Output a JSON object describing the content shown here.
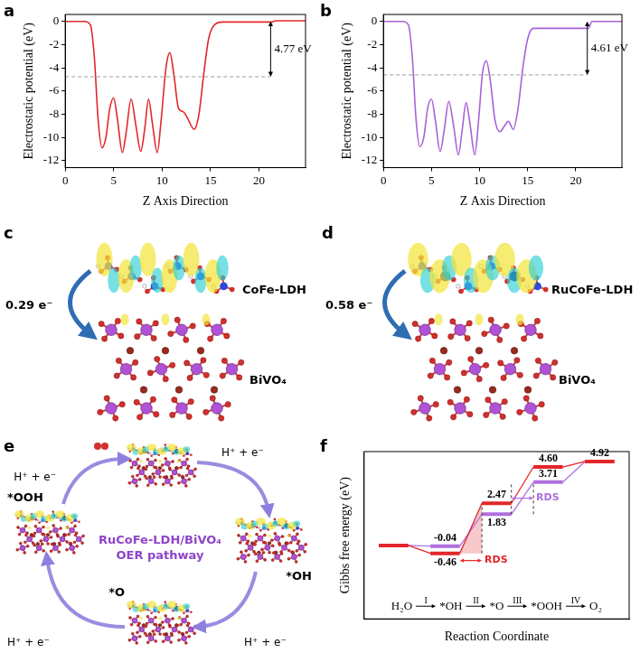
{
  "chart_data": [
    {
      "panel": "a",
      "type": "line",
      "x_label": "Z Axis Direction",
      "y_label": "Electrostatic potential (eV)",
      "xlim": [
        0,
        24.8
      ],
      "xticks": [
        0,
        5,
        10,
        15,
        20
      ],
      "ylim": [
        -12.6,
        0.6
      ],
      "yticks": [
        -12,
        -10,
        -8,
        -6,
        -4,
        -2,
        0
      ],
      "grid": false,
      "x": [
        0,
        2,
        2.6,
        3.0,
        3.4,
        3.8,
        4.2,
        4.6,
        5.0,
        5.4,
        5.9,
        6.3,
        6.8,
        7.3,
        7.8,
        8.2,
        8.6,
        9.0,
        9.5,
        9.9,
        10.4,
        10.8,
        11.2,
        11.7,
        12.2,
        12.6,
        13.3,
        13.8,
        14.3,
        14.8,
        15.4,
        16.2,
        21.3,
        21.7,
        24.8
      ],
      "series": [
        {
          "color": "#e3262a",
          "values": [
            0,
            0,
            -0.3,
            -3,
            -8.5,
            -10.9,
            -10,
            -7.5,
            -6.6,
            -8.5,
            -11.3,
            -9.5,
            -6.7,
            -9,
            -11.2,
            -9.3,
            -6.7,
            -8.8,
            -11.3,
            -8.5,
            -4,
            -2.7,
            -4.5,
            -7.5,
            -7.8,
            -8.3,
            -9.3,
            -8,
            -4.5,
            -1.5,
            -0.3,
            -0.05,
            -0.05,
            0.05,
            0.05
          ]
        }
      ],
      "annotation": {
        "text": "4.77 eV",
        "level": -4.77,
        "x": 21.2
      }
    },
    {
      "panel": "b",
      "type": "line",
      "x_label": "Z Axis Direction",
      "y_label": "Electrostatic potential (eV)",
      "xlim": [
        0,
        24.8
      ],
      "xticks": [
        0,
        5,
        10,
        15,
        20
      ],
      "ylim": [
        -12.6,
        0.6
      ],
      "yticks": [
        -12,
        -10,
        -8,
        -6,
        -4,
        -2,
        0
      ],
      "grid": false,
      "x": [
        0,
        2,
        2.6,
        3.0,
        3.4,
        3.8,
        4.2,
        4.6,
        5.0,
        5.4,
        5.9,
        6.3,
        6.8,
        7.3,
        7.8,
        8.2,
        8.6,
        9.0,
        9.5,
        9.9,
        10.3,
        10.7,
        11.1,
        11.6,
        12.1,
        12.6,
        13.0,
        13.5,
        14.0,
        14.5,
        15.0,
        15.6,
        16.2,
        21.3,
        21.7,
        24.8
      ],
      "series": [
        {
          "color": "#a862d8",
          "values": [
            0,
            0,
            -0.3,
            -3,
            -8.5,
            -10.8,
            -10,
            -7.5,
            -6.7,
            -8.5,
            -11.2,
            -9.5,
            -6.9,
            -9,
            -11.5,
            -9.3,
            -7.0,
            -8.8,
            -11.5,
            -8.5,
            -4.5,
            -3.4,
            -5,
            -8.5,
            -9.5,
            -9,
            -8.6,
            -9.3,
            -7.5,
            -4,
            -1.5,
            -0.6,
            -0.6,
            -0.6,
            0,
            0
          ]
        }
      ],
      "annotation": {
        "text": "4.61 eV",
        "level": -4.61,
        "x": 21.2
      }
    },
    {
      "panel": "f",
      "type": "step",
      "x_label": "Reaction Coordinate",
      "y_label": "Gibbs free energy (eV)",
      "ylim": [
        -4.3,
        5.5
      ],
      "tick_labels": false,
      "grid": false,
      "data_labels": true,
      "steps": [
        "H₂O",
        "*OH",
        "*O",
        "*OOH",
        "O₂"
      ],
      "step_labels": [
        "I",
        "II",
        "III",
        "IV"
      ],
      "rds_label": "RDS",
      "series": [
        {
          "color": "#e3262a",
          "values": [
            0,
            -0.46,
            2.47,
            4.6,
            4.92
          ],
          "value_labels": [
            null,
            "-0.46",
            "2.47",
            "4.60",
            "4.92"
          ],
          "rds": "II"
        },
        {
          "color": "#b06ee0",
          "values": [
            0,
            -0.04,
            1.83,
            3.71,
            4.92
          ],
          "value_labels": [
            null,
            "-0.04",
            "1.83",
            "3.71",
            null
          ],
          "rds": "III"
        }
      ]
    }
  ],
  "diagrams": {
    "c": {
      "panel": "c",
      "top_material": "CoFe-LDH",
      "bottom_material": "BiVO₄",
      "charge_transfer": "0.29 e⁻"
    },
    "d": {
      "panel": "d",
      "top_material": "RuCoFe-LDH",
      "bottom_material": "BiVO₄",
      "charge_transfer": "0.58 e⁻"
    },
    "e": {
      "panel": "e",
      "center_text": [
        "RuCoFe-LDH/BiVO₄",
        "OER pathway"
      ],
      "intermediates": [
        "*OH",
        "*O",
        "*OOH"
      ],
      "step_text": "H⁺ + e⁻"
    }
  }
}
